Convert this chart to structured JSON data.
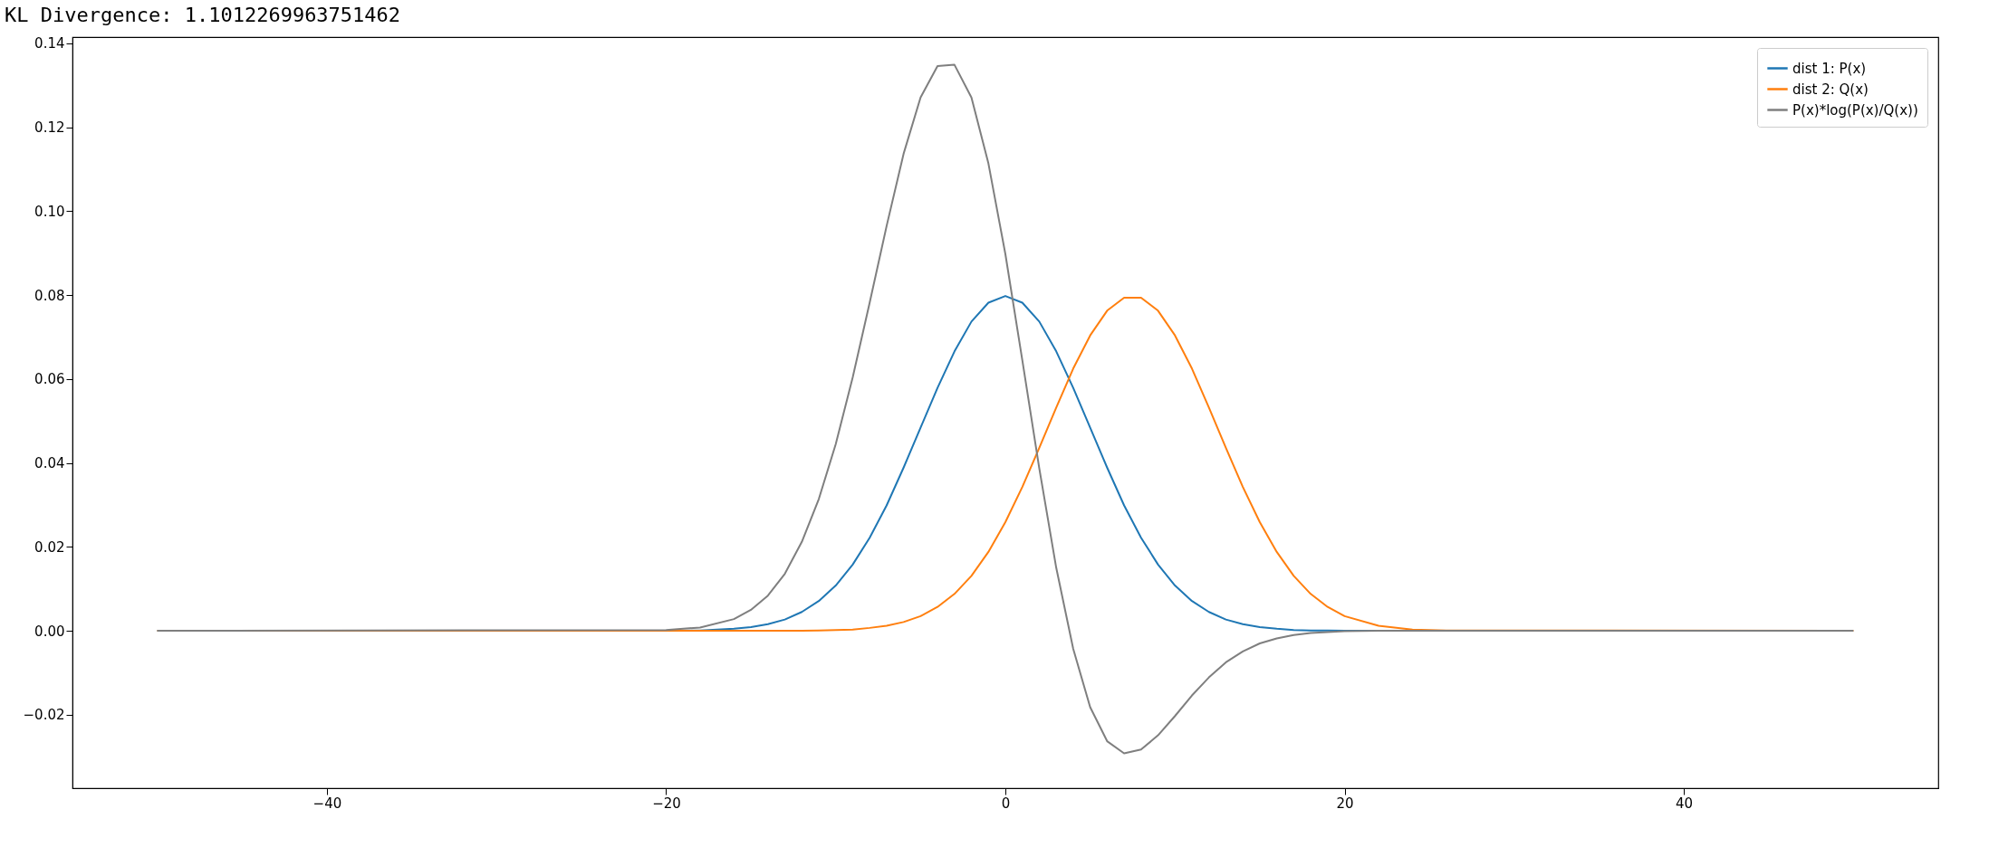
{
  "chart_data": {
    "type": "line",
    "title": "KL Divergence: 1.1012269963751462",
    "x": [
      -50,
      -20,
      -18,
      -16,
      -15,
      -14,
      -13,
      -12,
      -11,
      -10,
      -9,
      -8,
      -7,
      -6,
      -5,
      -4,
      -3,
      -2,
      -1,
      0,
      1,
      2,
      3,
      4,
      5,
      6,
      7,
      8,
      9,
      10,
      11,
      12,
      13,
      14,
      15,
      16,
      17,
      18,
      19,
      20,
      22,
      24,
      26,
      50
    ],
    "series": [
      {
        "name": "dist 1: P(x)",
        "color": "#1f77b4",
        "values": [
          0,
          0.0,
          0.0001,
          0.0005,
          0.0009,
          0.0016,
          0.0027,
          0.0045,
          0.0071,
          0.0108,
          0.0158,
          0.0222,
          0.0299,
          0.0389,
          0.0484,
          0.0579,
          0.0666,
          0.0737,
          0.0782,
          0.0798,
          0.0782,
          0.0737,
          0.0666,
          0.0579,
          0.0484,
          0.0389,
          0.0299,
          0.0222,
          0.0158,
          0.0108,
          0.0071,
          0.0045,
          0.0027,
          0.0016,
          0.0009,
          0.0005,
          0.0002,
          0.0001,
          0.0001,
          0.0,
          0,
          null,
          null,
          null
        ]
      },
      {
        "name": "dist 2: Q(x)",
        "color": "#ff7f0e",
        "values": [
          0,
          0,
          0,
          0,
          0,
          0,
          0,
          0.0,
          0.0001,
          0.0002,
          0.0003,
          0.0007,
          0.0012,
          0.0021,
          0.0035,
          0.0057,
          0.0088,
          0.0131,
          0.0188,
          0.0259,
          0.0343,
          0.0436,
          0.0532,
          0.0625,
          0.0704,
          0.0763,
          0.0794,
          0.0794,
          0.0763,
          0.0704,
          0.0625,
          0.0532,
          0.0436,
          0.0343,
          0.0259,
          0.0188,
          0.0131,
          0.0088,
          0.0057,
          0.0035,
          0.0012,
          0.0003,
          0.0001,
          0
        ]
      },
      {
        "name": "P(x)*log(P(x)/Q(x))",
        "color": "#7f7f7f",
        "values": [
          0,
          0.0002,
          0.0008,
          0.0028,
          0.005,
          0.0084,
          0.0136,
          0.0212,
          0.0314,
          0.0445,
          0.0604,
          0.0782,
          0.0965,
          0.1137,
          0.1271,
          0.1346,
          0.1349,
          0.1271,
          0.1114,
          0.0898,
          0.0645,
          0.0387,
          0.015,
          -0.0043,
          -0.0182,
          -0.0263,
          -0.0292,
          -0.0283,
          -0.0249,
          -0.0203,
          -0.0154,
          -0.0111,
          -0.0075,
          -0.0049,
          -0.003,
          -0.0018,
          -0.001,
          -0.0005,
          -0.0003,
          -0.0001,
          0,
          0,
          0,
          0
        ]
      }
    ],
    "xlim": [
      -55,
      55
    ],
    "xticks": [
      {
        "value": -40,
        "label": "−40"
      },
      {
        "value": -20,
        "label": "−20"
      },
      0,
      20,
      40
    ],
    "ylim": [
      -0.0375,
      0.1415
    ],
    "yticks": [
      {
        "value": -0.02,
        "label": "−0.02"
      },
      {
        "value": 0,
        "label": "0.00"
      },
      0.02,
      0.04,
      0.06,
      0.08,
      {
        "value": 0.1,
        "label": "0.10"
      },
      0.12,
      0.14
    ],
    "grid": false,
    "legend": "top right",
    "marker": "none",
    "line_style": "solid"
  }
}
